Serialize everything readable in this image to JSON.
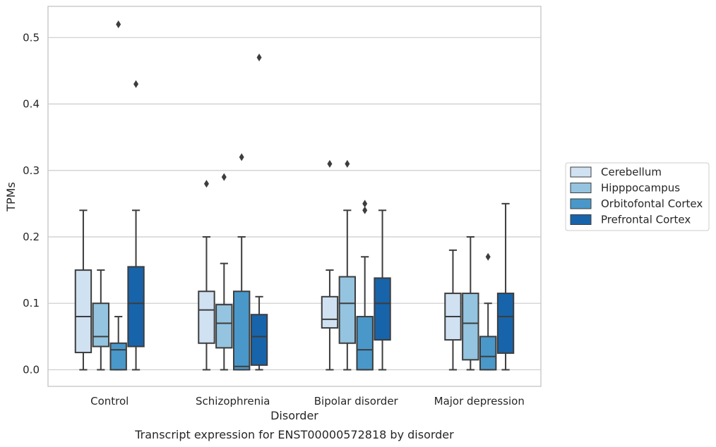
{
  "chart_data": {
    "type": "box",
    "xlabel": "Disorder",
    "ylabel": "TPMs",
    "caption": "Transcript expression for ENST00000572818 by disorder",
    "categories": [
      "Control",
      "Schizophrenia",
      "Bipolar disorder",
      "Major depression"
    ],
    "ylim": [
      -0.025,
      0.547
    ],
    "yticks": [
      0.0,
      0.1,
      0.2,
      0.3,
      0.4,
      0.5
    ],
    "ytick_labels": [
      "0.0",
      "0.1",
      "0.2",
      "0.3",
      "0.4",
      "0.5"
    ],
    "grid": true,
    "legend_position": "right",
    "series": [
      {
        "name": "Cerebellum",
        "color": "#d0e1f2",
        "boxes": [
          {
            "whisker_low": 0.0,
            "q1": 0.026,
            "median": 0.08,
            "q3": 0.15,
            "whisker_high": 0.24,
            "outliers": []
          },
          {
            "whisker_low": 0.0,
            "q1": 0.04,
            "median": 0.09,
            "q3": 0.118,
            "whisker_high": 0.2,
            "outliers": [
              0.28
            ]
          },
          {
            "whisker_low": 0.0,
            "q1": 0.063,
            "median": 0.076,
            "q3": 0.11,
            "whisker_high": 0.15,
            "outliers": [
              0.31
            ]
          },
          {
            "whisker_low": 0.0,
            "q1": 0.045,
            "median": 0.08,
            "q3": 0.115,
            "whisker_high": 0.18,
            "outliers": []
          }
        ]
      },
      {
        "name": "Hipppocampus",
        "color": "#94c4df",
        "boxes": [
          {
            "whisker_low": 0.0,
            "q1": 0.035,
            "median": 0.05,
            "q3": 0.1,
            "whisker_high": 0.15,
            "outliers": []
          },
          {
            "whisker_low": 0.0,
            "q1": 0.033,
            "median": 0.07,
            "q3": 0.098,
            "whisker_high": 0.16,
            "outliers": [
              0.29
            ]
          },
          {
            "whisker_low": 0.0,
            "q1": 0.04,
            "median": 0.1,
            "q3": 0.14,
            "whisker_high": 0.24,
            "outliers": [
              0.31
            ]
          },
          {
            "whisker_low": 0.0,
            "q1": 0.015,
            "median": 0.07,
            "q3": 0.115,
            "whisker_high": 0.2,
            "outliers": []
          }
        ]
      },
      {
        "name": "Orbitofontal Cortex",
        "color": "#4a98c9",
        "boxes": [
          {
            "whisker_low": 0.0,
            "q1": 0.0,
            "median": 0.03,
            "q3": 0.04,
            "whisker_high": 0.08,
            "outliers": [
              0.52
            ]
          },
          {
            "whisker_low": 0.0,
            "q1": 0.0,
            "median": 0.005,
            "q3": 0.118,
            "whisker_high": 0.2,
            "outliers": [
              0.32
            ]
          },
          {
            "whisker_low": 0.0,
            "q1": 0.0,
            "median": 0.03,
            "q3": 0.08,
            "whisker_high": 0.17,
            "outliers": [
              0.24,
              0.25
            ]
          },
          {
            "whisker_low": 0.0,
            "q1": 0.0,
            "median": 0.02,
            "q3": 0.05,
            "whisker_high": 0.1,
            "outliers": [
              0.17
            ]
          }
        ]
      },
      {
        "name": "Prefrontal Cortex",
        "color": "#1764ab",
        "boxes": [
          {
            "whisker_low": 0.0,
            "q1": 0.035,
            "median": 0.1,
            "q3": 0.155,
            "whisker_high": 0.24,
            "outliers": [
              0.43
            ]
          },
          {
            "whisker_low": 0.0,
            "q1": 0.007,
            "median": 0.05,
            "q3": 0.083,
            "whisker_high": 0.11,
            "outliers": [
              0.47
            ]
          },
          {
            "whisker_low": 0.0,
            "q1": 0.045,
            "median": 0.1,
            "q3": 0.138,
            "whisker_high": 0.24,
            "outliers": []
          },
          {
            "whisker_low": 0.0,
            "q1": 0.025,
            "median": 0.08,
            "q3": 0.115,
            "whisker_high": 0.25,
            "outliers": []
          }
        ]
      }
    ]
  }
}
